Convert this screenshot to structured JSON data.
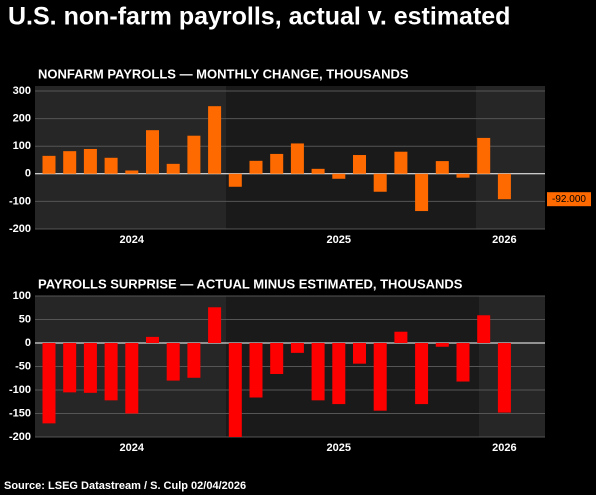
{
  "title": "U.S. non-farm payrolls, actual v. estimated",
  "source": "Source: LSEG Datastream / S. Culp 02/04/2026",
  "chart_data": [
    {
      "type": "bar",
      "title": "NONFARM PAYROLLS — MONTHLY CHANGE, THOUSANDS",
      "categories": [
        null,
        null,
        null,
        null,
        "2024",
        null,
        null,
        null,
        null,
        null,
        null,
        null,
        null,
        null,
        "2025",
        null,
        null,
        null,
        null,
        null,
        null,
        null,
        "2026"
      ],
      "values": [
        65,
        82,
        90,
        58,
        12,
        158,
        36,
        138,
        245,
        -47,
        47,
        72,
        110,
        18,
        -18,
        68,
        -65,
        80,
        -135,
        46,
        -14,
        130,
        -92
      ],
      "color": "#ff6a00",
      "ylim": [
        -200,
        300
      ],
      "yticks": [
        -200,
        -100,
        0,
        100,
        200,
        300
      ],
      "grid": true,
      "annotation": "-92.000"
    },
    {
      "type": "bar",
      "title": "PAYROLLS SURPRISE — ACTUAL MINUS ESTIMATED, THOUSANDS",
      "categories": [
        null,
        null,
        null,
        null,
        "2024",
        null,
        null,
        null,
        null,
        null,
        null,
        null,
        null,
        null,
        "2025",
        null,
        null,
        null,
        null,
        null,
        null,
        null,
        "2026"
      ],
      "values": [
        -171,
        -105,
        -106,
        -122,
        -150,
        13,
        -80,
        -74,
        76,
        -200,
        -116,
        -66,
        -21,
        -122,
        -130,
        -44,
        -144,
        24,
        -130,
        -8,
        -82,
        59,
        -148
      ],
      "color": "#ff0000",
      "ylim": [
        -200,
        100
      ],
      "yticks": [
        -200,
        -150,
        -100,
        -50,
        0,
        50,
        100
      ],
      "grid": true
    }
  ]
}
